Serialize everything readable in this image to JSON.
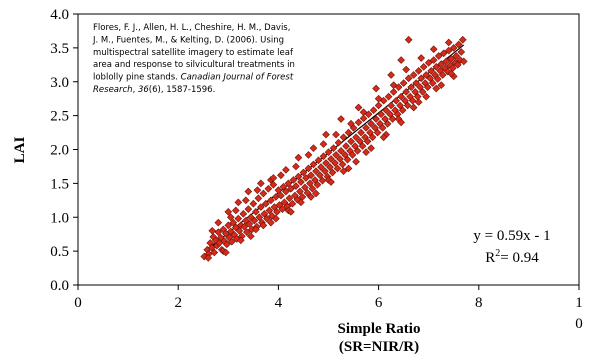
{
  "chart_data": {
    "type": "scatter",
    "xlabel_lines": [
      "Simple Ratio",
      "(SR=NIR/R)"
    ],
    "ylabel": "LAI",
    "xlim": [
      0,
      10
    ],
    "ylim": [
      0.0,
      4.0
    ],
    "x_ticks": [
      {
        "value": 0,
        "label": "0"
      },
      {
        "value": 2,
        "label": "2"
      },
      {
        "value": 4,
        "label": "4"
      },
      {
        "value": 6,
        "label": "6"
      },
      {
        "value": 8,
        "label": "8"
      },
      {
        "value": 10,
        "label": "1\n0"
      }
    ],
    "y_ticks": [
      {
        "value": 0.0,
        "label": "0.0"
      },
      {
        "value": 0.5,
        "label": "0.5"
      },
      {
        "value": 1.0,
        "label": "1.0"
      },
      {
        "value": 1.5,
        "label": "1.5"
      },
      {
        "value": 2.0,
        "label": "2.0"
      },
      {
        "value": 2.5,
        "label": "2.5"
      },
      {
        "value": 3.0,
        "label": "3.0"
      },
      {
        "value": 3.5,
        "label": "3.5"
      },
      {
        "value": 4.0,
        "label": "4.0"
      }
    ],
    "fit_line": {
      "slope": 0.59,
      "intercept": -1,
      "x_range": [
        2.55,
        7.7
      ]
    },
    "equation_label": "y = 0.59x - 1",
    "r2_label": {
      "base": "R",
      "sup": "2",
      "rest": "= 0.94"
    },
    "citation": [
      {
        "text": "Flores, F. J., Allen, H. L., Cheshire, H. M., Davis,"
      },
      {
        "text": "J. M., Fuentes, M., & Kelting, D. (2006). Using"
      },
      {
        "text": "multispectral satellite imagery to estimate leaf"
      },
      {
        "text": "area and response to silvicultural treatments in"
      },
      {
        "text": "loblolly pine stands. ",
        "italic": "Canadian Journal of Forest"
      },
      {
        "italic": "Research",
        "text": ", ",
        "italic2": "36",
        "text2": "(6), 1587-1596."
      }
    ],
    "marker": {
      "fill": "#d62a1a",
      "stroke": "#6e1208",
      "shape": "diamond"
    },
    "line_color": "#000000",
    "points": [
      [
        2.52,
        0.42
      ],
      [
        2.58,
        0.52
      ],
      [
        2.61,
        0.46
      ],
      [
        2.64,
        0.62
      ],
      [
        2.67,
        0.55
      ],
      [
        2.7,
        0.71
      ],
      [
        2.72,
        0.48
      ],
      [
        2.75,
        0.66
      ],
      [
        2.77,
        0.58
      ],
      [
        2.8,
        0.78
      ],
      [
        2.82,
        0.62
      ],
      [
        2.85,
        0.7
      ],
      [
        2.87,
        0.52
      ],
      [
        2.9,
        0.82
      ],
      [
        2.92,
        0.65
      ],
      [
        2.95,
        0.76
      ],
      [
        2.97,
        0.6
      ],
      [
        3.0,
        0.88
      ],
      [
        3.02,
        0.7
      ],
      [
        3.05,
        0.79
      ],
      [
        3.07,
        0.64
      ],
      [
        3.1,
        0.92
      ],
      [
        3.12,
        0.74
      ],
      [
        3.15,
        0.85
      ],
      [
        3.17,
        0.68
      ],
      [
        3.2,
        0.98
      ],
      [
        3.22,
        0.8
      ],
      [
        3.25,
        0.88
      ],
      [
        3.27,
        0.72
      ],
      [
        3.3,
        1.05
      ],
      [
        3.32,
        0.86
      ],
      [
        3.35,
        0.95
      ],
      [
        3.37,
        0.78
      ],
      [
        3.4,
        1.12
      ],
      [
        3.42,
        0.9
      ],
      [
        3.45,
        1.0
      ],
      [
        3.47,
        0.82
      ],
      [
        3.5,
        1.2
      ],
      [
        3.52,
        0.95
      ],
      [
        3.55,
        1.08
      ],
      [
        3.57,
        0.86
      ],
      [
        3.6,
        1.28
      ],
      [
        3.62,
        1.0
      ],
      [
        3.65,
        1.15
      ],
      [
        3.67,
        0.92
      ],
      [
        3.7,
        1.35
      ],
      [
        3.72,
        1.05
      ],
      [
        3.75,
        1.2
      ],
      [
        3.77,
        0.98
      ],
      [
        3.8,
        1.42
      ],
      [
        3.82,
        1.1
      ],
      [
        3.85,
        1.25
      ],
      [
        3.87,
        1.02
      ],
      [
        3.9,
        1.48
      ],
      [
        3.92,
        1.15
      ],
      [
        3.95,
        1.3
      ],
      [
        3.97,
        1.08
      ],
      [
        4.0,
        1.4
      ],
      [
        4.02,
        1.18
      ],
      [
        4.05,
        1.32
      ],
      [
        4.08,
        1.12
      ],
      [
        4.1,
        1.45
      ],
      [
        4.12,
        1.22
      ],
      [
        4.15,
        1.38
      ],
      [
        4.18,
        1.16
      ],
      [
        4.2,
        1.5
      ],
      [
        4.22,
        1.28
      ],
      [
        4.25,
        1.42
      ],
      [
        4.28,
        1.2
      ],
      [
        4.3,
        1.55
      ],
      [
        4.33,
        1.32
      ],
      [
        4.35,
        1.46
      ],
      [
        4.38,
        1.26
      ],
      [
        4.4,
        1.6
      ],
      [
        4.43,
        1.38
      ],
      [
        4.45,
        1.52
      ],
      [
        4.48,
        1.3
      ],
      [
        4.5,
        1.66
      ],
      [
        4.53,
        1.44
      ],
      [
        4.55,
        1.58
      ],
      [
        4.58,
        1.36
      ],
      [
        4.6,
        1.72
      ],
      [
        4.63,
        1.5
      ],
      [
        4.65,
        1.62
      ],
      [
        4.68,
        1.42
      ],
      [
        4.7,
        1.78
      ],
      [
        4.73,
        1.55
      ],
      [
        4.75,
        1.68
      ],
      [
        4.78,
        1.48
      ],
      [
        4.8,
        1.84
      ],
      [
        4.83,
        1.62
      ],
      [
        4.85,
        1.74
      ],
      [
        4.88,
        1.54
      ],
      [
        4.9,
        1.9
      ],
      [
        4.93,
        1.68
      ],
      [
        4.95,
        1.8
      ],
      [
        4.98,
        1.6
      ],
      [
        5.0,
        1.96
      ],
      [
        5.03,
        1.74
      ],
      [
        5.05,
        1.86
      ],
      [
        5.08,
        1.66
      ],
      [
        5.1,
        2.02
      ],
      [
        5.13,
        1.8
      ],
      [
        5.15,
        1.92
      ],
      [
        5.18,
        1.72
      ],
      [
        5.2,
        2.1
      ],
      [
        5.23,
        1.86
      ],
      [
        5.25,
        1.98
      ],
      [
        5.28,
        1.78
      ],
      [
        5.3,
        2.18
      ],
      [
        5.33,
        1.92
      ],
      [
        5.35,
        2.05
      ],
      [
        5.38,
        1.85
      ],
      [
        5.4,
        2.25
      ],
      [
        5.43,
        1.98
      ],
      [
        5.45,
        2.12
      ],
      [
        5.48,
        1.92
      ],
      [
        5.5,
        2.32
      ],
      [
        5.53,
        2.05
      ],
      [
        5.55,
        2.18
      ],
      [
        5.58,
        1.98
      ],
      [
        5.6,
        2.4
      ],
      [
        5.63,
        2.12
      ],
      [
        5.65,
        2.25
      ],
      [
        5.68,
        2.05
      ],
      [
        5.7,
        2.46
      ],
      [
        5.73,
        2.18
      ],
      [
        5.75,
        2.32
      ],
      [
        5.78,
        2.12
      ],
      [
        5.8,
        2.52
      ],
      [
        5.83,
        2.25
      ],
      [
        5.85,
        2.38
      ],
      [
        5.88,
        2.18
      ],
      [
        5.9,
        2.58
      ],
      [
        5.93,
        2.32
      ],
      [
        5.95,
        2.45
      ],
      [
        5.98,
        2.25
      ],
      [
        6.0,
        2.65
      ],
      [
        6.03,
        2.38
      ],
      [
        6.05,
        2.52
      ],
      [
        6.08,
        2.32
      ],
      [
        6.1,
        2.72
      ],
      [
        6.13,
        2.45
      ],
      [
        6.15,
        2.58
      ],
      [
        6.18,
        2.38
      ],
      [
        6.2,
        2.78
      ],
      [
        6.23,
        2.52
      ],
      [
        6.25,
        2.65
      ],
      [
        6.28,
        2.45
      ],
      [
        6.3,
        2.85
      ],
      [
        6.33,
        2.58
      ],
      [
        6.35,
        2.72
      ],
      [
        6.38,
        2.52
      ],
      [
        6.4,
        2.92
      ],
      [
        6.43,
        2.65
      ],
      [
        6.45,
        2.78
      ],
      [
        6.48,
        2.58
      ],
      [
        6.5,
        2.98
      ],
      [
        6.53,
        2.72
      ],
      [
        6.55,
        2.85
      ],
      [
        6.58,
        2.65
      ],
      [
        6.6,
        3.05
      ],
      [
        6.63,
        2.78
      ],
      [
        6.65,
        2.92
      ],
      [
        6.68,
        2.72
      ],
      [
        6.7,
        3.1
      ],
      [
        6.73,
        2.85
      ],
      [
        6.75,
        2.98
      ],
      [
        6.78,
        2.78
      ],
      [
        6.8,
        3.16
      ],
      [
        6.83,
        2.92
      ],
      [
        6.85,
        3.05
      ],
      [
        6.88,
        2.85
      ],
      [
        6.9,
        3.22
      ],
      [
        6.93,
        2.98
      ],
      [
        6.95,
        3.1
      ],
      [
        6.98,
        2.92
      ],
      [
        7.0,
        3.28
      ],
      [
        7.03,
        3.05
      ],
      [
        7.05,
        3.16
      ],
      [
        7.08,
        2.98
      ],
      [
        7.1,
        3.32
      ],
      [
        7.13,
        3.1
      ],
      [
        7.15,
        3.22
      ],
      [
        7.18,
        3.04
      ],
      [
        7.2,
        3.38
      ],
      [
        7.23,
        3.16
      ],
      [
        7.25,
        3.26
      ],
      [
        7.28,
        3.1
      ],
      [
        7.3,
        3.42
      ],
      [
        7.33,
        3.2
      ],
      [
        7.35,
        3.3
      ],
      [
        7.38,
        3.15
      ],
      [
        7.4,
        3.46
      ],
      [
        7.43,
        3.24
      ],
      [
        7.45,
        3.34
      ],
      [
        7.48,
        3.2
      ],
      [
        7.5,
        3.5
      ],
      [
        7.53,
        3.28
      ],
      [
        7.55,
        3.38
      ],
      [
        7.58,
        3.25
      ],
      [
        7.6,
        3.55
      ],
      [
        7.63,
        3.32
      ],
      [
        7.65,
        3.44
      ],
      [
        7.68,
        3.62
      ],
      [
        2.9,
        0.5
      ],
      [
        3.05,
        1.0
      ],
      [
        3.15,
        1.1
      ],
      [
        3.35,
        1.25
      ],
      [
        3.45,
        0.72
      ],
      [
        3.58,
        1.4
      ],
      [
        3.7,
        0.88
      ],
      [
        3.85,
        1.55
      ],
      [
        3.95,
        0.98
      ],
      [
        4.05,
        1.62
      ],
      [
        4.2,
        1.1
      ],
      [
        4.35,
        1.75
      ],
      [
        4.45,
        1.22
      ],
      [
        4.6,
        1.92
      ],
      [
        4.75,
        1.35
      ],
      [
        4.9,
        2.08
      ],
      [
        5.0,
        1.55
      ],
      [
        5.15,
        2.22
      ],
      [
        5.3,
        1.68
      ],
      [
        5.45,
        2.38
      ],
      [
        5.55,
        1.82
      ],
      [
        5.7,
        2.55
      ],
      [
        5.85,
        2.02
      ],
      [
        6.0,
        2.75
      ],
      [
        6.15,
        2.22
      ],
      [
        6.3,
        2.95
      ],
      [
        6.4,
        2.45
      ],
      [
        6.55,
        3.18
      ],
      [
        6.7,
        2.62
      ],
      [
        6.85,
        3.35
      ],
      [
        6.95,
        2.78
      ],
      [
        7.1,
        3.48
      ],
      [
        7.25,
        2.95
      ],
      [
        7.4,
        3.58
      ],
      [
        7.5,
        3.08
      ],
      [
        6.6,
        3.62
      ],
      [
        6.45,
        3.32
      ],
      [
        6.25,
        3.1
      ],
      [
        5.95,
        2.9
      ],
      [
        5.6,
        2.62
      ],
      [
        5.25,
        2.45
      ],
      [
        4.95,
        2.22
      ],
      [
        4.7,
        2.02
      ],
      [
        4.4,
        1.88
      ],
      [
        4.15,
        1.7
      ],
      [
        3.9,
        1.58
      ],
      [
        3.65,
        1.5
      ],
      [
        3.4,
        1.38
      ],
      [
        3.2,
        1.22
      ],
      [
        3.0,
        1.08
      ],
      [
        2.8,
        0.92
      ],
      [
        2.68,
        0.8
      ],
      [
        2.6,
        0.4
      ],
      [
        2.95,
        0.48
      ],
      [
        3.25,
        0.66
      ],
      [
        3.55,
        0.82
      ],
      [
        3.85,
        0.92
      ],
      [
        4.25,
        1.08
      ],
      [
        4.65,
        1.3
      ],
      [
        5.05,
        1.52
      ],
      [
        5.4,
        1.72
      ],
      [
        5.75,
        1.96
      ],
      [
        6.1,
        2.18
      ],
      [
        6.45,
        2.4
      ],
      [
        6.8,
        2.7
      ],
      [
        7.15,
        2.9
      ],
      [
        7.45,
        3.12
      ],
      [
        7.7,
        3.3
      ]
    ]
  }
}
